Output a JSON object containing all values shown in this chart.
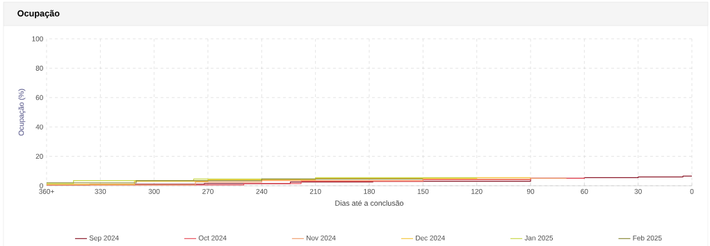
{
  "chart_data": {
    "type": "step",
    "title": "Ocupação",
    "xlabel": "Dias até a conclusão",
    "ylabel": "Ocupação (%)",
    "xlim": [
      360,
      0
    ],
    "ylim": [
      0,
      100
    ],
    "xticks": [
      {
        "value": 360,
        "label": "360+"
      },
      330,
      300,
      270,
      240,
      210,
      180,
      150,
      120,
      90,
      60,
      30,
      0
    ],
    "yticks": [
      0,
      20,
      40,
      60,
      80,
      100
    ],
    "grid": true,
    "legend": "bottom",
    "marker": "none",
    "line_style": "solid",
    "series": [
      {
        "name": "Sep 2024",
        "color": "#8b1a2b",
        "x": [
          360,
          336,
          272,
          224,
          178,
          90,
          60,
          30,
          5,
          0
        ],
        "values": [
          0.5,
          1,
          1.5,
          2.5,
          3,
          5,
          5.5,
          6,
          6.5,
          6.5
        ]
      },
      {
        "name": "Oct 2024",
        "color": "#e8505b",
        "x": [
          360,
          250,
          218,
          150,
          90,
          60
        ],
        "values": [
          0.5,
          1.5,
          3,
          4,
          5,
          5.5
        ]
      },
      {
        "name": "Nov 2024",
        "color": "#f0a070",
        "x": [
          360,
          277,
          240,
          150,
          90,
          70
        ],
        "values": [
          0.5,
          2.5,
          3.5,
          4.5,
          5,
          5
        ]
      },
      {
        "name": "Dec 2024",
        "color": "#f5c842",
        "x": [
          360,
          311,
          270,
          210,
          120,
          90
        ],
        "values": [
          1,
          3,
          4,
          5,
          5.5,
          5.5
        ]
      },
      {
        "name": "Jan 2025",
        "color": "#c8d84a",
        "x": [
          360,
          345,
          278,
          210,
          120
        ],
        "values": [
          1.5,
          3.5,
          4.5,
          5.5,
          5.5
        ]
      },
      {
        "name": "Feb 2025",
        "color": "#8a8a3a",
        "x": [
          360,
          310,
          240,
          150
        ],
        "values": [
          2,
          3.5,
          4.5,
          4.5
        ]
      }
    ]
  }
}
